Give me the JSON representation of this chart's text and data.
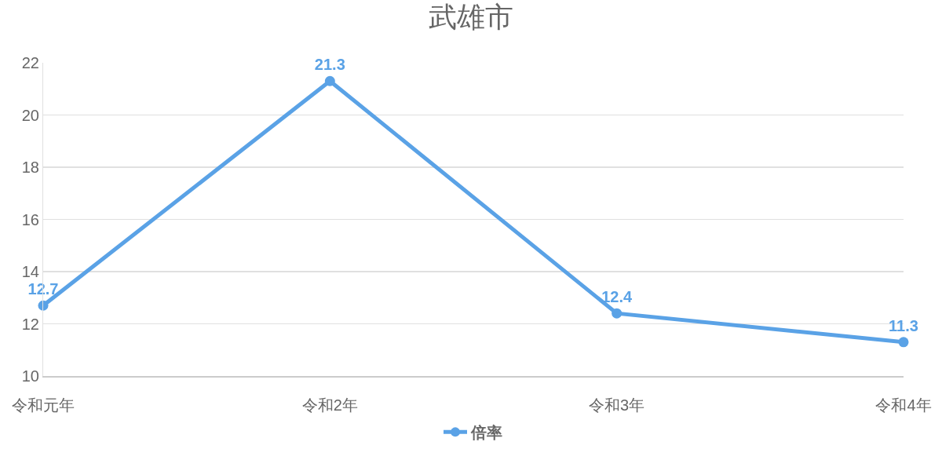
{
  "chart_data": {
    "type": "line",
    "title": "武雄市",
    "categories": [
      "令和元年",
      "令和2年",
      "令和3年",
      "令和4年"
    ],
    "series": [
      {
        "name": "倍率",
        "color": "#5aa2e6",
        "values": [
          12.7,
          21.3,
          12.4,
          11.3
        ]
      }
    ],
    "ylim": [
      10,
      22
    ],
    "yticks": [
      10,
      12,
      14,
      16,
      18,
      20,
      22
    ],
    "grid": "y",
    "legend": "bottom",
    "marker": "circle",
    "data_labels": true
  }
}
